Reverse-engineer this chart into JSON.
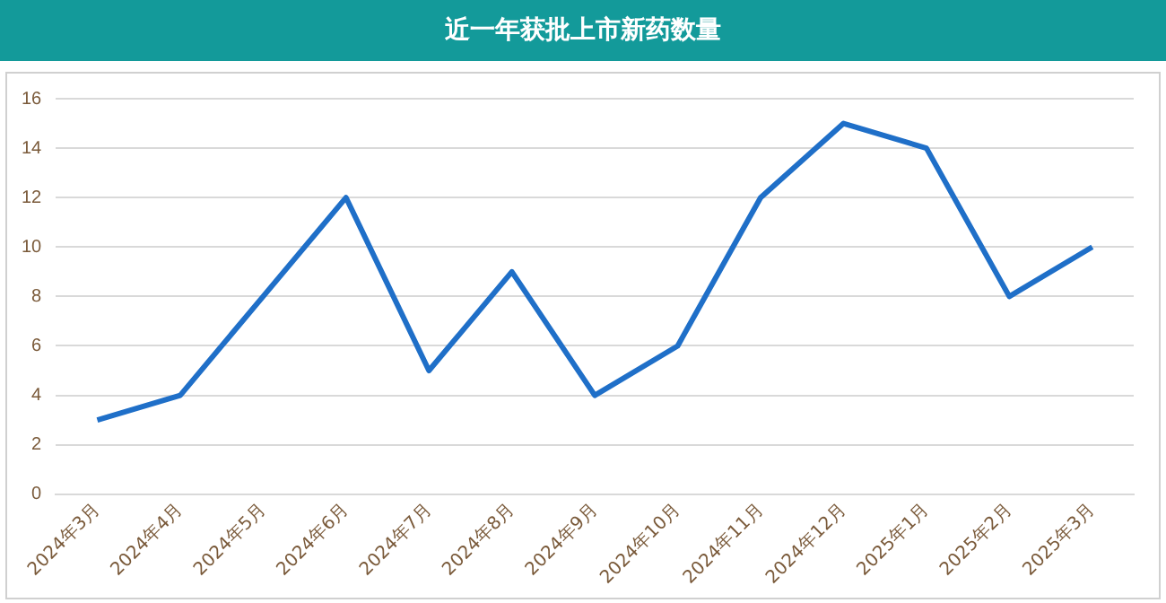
{
  "chart_data": {
    "type": "line",
    "title": "近一年获批上市新药数量",
    "categories": [
      "2024年3月",
      "2024年4月",
      "2024年5月",
      "2024年6月",
      "2024年7月",
      "2024年8月",
      "2024年9月",
      "2024年10月",
      "2024年11月",
      "2024年12月",
      "2025年1月",
      "2025年2月",
      "2025年3月"
    ],
    "series": [
      {
        "color": "#1f6fc8",
        "values": [
          3,
          4,
          8,
          12,
          5,
          9,
          4,
          6,
          12,
          15,
          14,
          8,
          10
        ]
      }
    ],
    "ylim": [
      0,
      16
    ],
    "yticks": [
      0,
      2,
      4,
      6,
      8,
      10,
      12,
      14,
      16
    ],
    "grid": "y",
    "legend": false,
    "marker": "none",
    "line_style": "solid"
  }
}
